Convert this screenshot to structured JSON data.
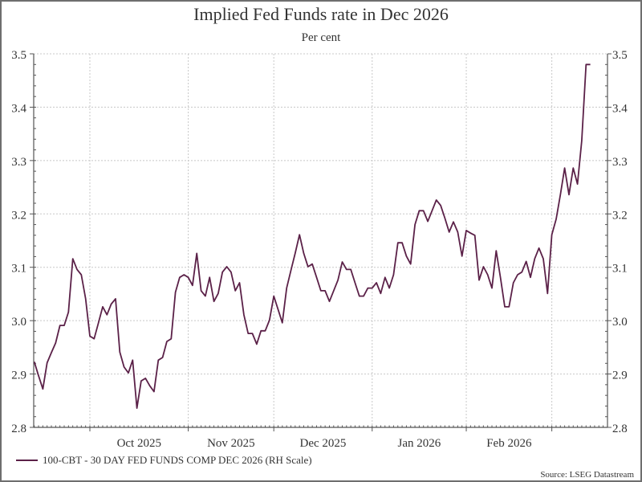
{
  "chart_data": {
    "type": "line",
    "title": "Implied Fed Funds rate in Dec 2026",
    "subtitle": "Per cent",
    "ylim": [
      2.8,
      3.5
    ],
    "yticks": [
      "2.8",
      "2.9",
      "3.0",
      "3.1",
      "3.2",
      "3.3",
      "3.4",
      "3.5"
    ],
    "y_axes": "both",
    "grid": true,
    "xtick_labels": [
      {
        "label": "Oct 2025",
        "start": "2025-10-01",
        "end": "2025-11-03"
      },
      {
        "label": "Nov 2025",
        "start": "2025-11-03",
        "end": "2025-12-01"
      },
      {
        "label": "Dec 2025",
        "start": "2025-12-01",
        "end": "2026-01-01"
      },
      {
        "label": "Jan 2026",
        "start": "2026-01-01",
        "end": "2026-02-02"
      },
      {
        "label": "Feb 2026",
        "start": "2026-02-02",
        "end": "2026-03-02"
      }
    ],
    "legend_position": "bottom-left",
    "series": [
      {
        "name": "100-CBT - 30 DAY FED FUNDS COMP DEC 2026 (RH Scale)",
        "color": "#5b2148",
        "x": [
          "2025-09-12",
          "2025-09-15",
          "2025-09-16",
          "2025-09-17",
          "2025-09-18",
          "2025-09-19",
          "2025-09-22",
          "2025-09-23",
          "2025-09-24",
          "2025-09-25",
          "2025-09-26",
          "2025-09-29",
          "2025-09-30",
          "2025-10-01",
          "2025-10-02",
          "2025-10-03",
          "2025-10-06",
          "2025-10-07",
          "2025-10-08",
          "2025-10-09",
          "2025-10-10",
          "2025-10-13",
          "2025-10-14",
          "2025-10-15",
          "2025-10-16",
          "2025-10-17",
          "2025-10-20",
          "2025-10-21",
          "2025-10-22",
          "2025-10-23",
          "2025-10-24",
          "2025-10-27",
          "2025-10-28",
          "2025-10-29",
          "2025-10-30",
          "2025-10-31",
          "2025-11-03",
          "2025-11-04",
          "2025-11-05",
          "2025-11-06",
          "2025-11-07",
          "2025-11-10",
          "2025-11-11",
          "2025-11-12",
          "2025-11-13",
          "2025-11-14",
          "2025-11-17",
          "2025-11-18",
          "2025-11-19",
          "2025-11-20",
          "2025-11-21",
          "2025-11-24",
          "2025-11-25",
          "2025-11-26",
          "2025-11-27",
          "2025-11-28",
          "2025-12-01",
          "2025-12-02",
          "2025-12-03",
          "2025-12-04",
          "2025-12-05",
          "2025-12-08",
          "2025-12-09",
          "2025-12-10",
          "2025-12-11",
          "2025-12-12",
          "2025-12-15",
          "2025-12-16",
          "2025-12-17",
          "2025-12-18",
          "2025-12-19",
          "2025-12-22",
          "2025-12-23",
          "2025-12-24",
          "2025-12-25",
          "2025-12-26",
          "2025-12-29",
          "2025-12-30",
          "2025-12-31",
          "2026-01-01",
          "2026-01-02",
          "2026-01-05",
          "2026-01-06",
          "2026-01-07",
          "2026-01-08",
          "2026-01-09",
          "2026-01-12",
          "2026-01-13",
          "2026-01-14",
          "2026-01-15",
          "2026-01-16",
          "2026-01-19",
          "2026-01-20",
          "2026-01-21",
          "2026-01-22",
          "2026-01-23",
          "2026-01-26",
          "2026-01-27",
          "2026-01-28",
          "2026-01-29",
          "2026-01-30",
          "2026-02-02",
          "2026-02-03",
          "2026-02-04",
          "2026-02-05",
          "2026-02-06",
          "2026-02-09",
          "2026-02-10",
          "2026-02-11",
          "2026-02-12",
          "2026-02-13",
          "2026-02-16",
          "2026-02-17",
          "2026-02-18",
          "2026-02-19",
          "2026-02-20",
          "2026-02-23",
          "2026-02-24",
          "2026-02-25",
          "2026-02-26",
          "2026-02-27",
          "2026-03-02",
          "2026-03-03",
          "2026-03-04",
          "2026-03-05",
          "2026-03-06",
          "2026-03-09",
          "2026-03-10",
          "2026-03-11",
          "2026-03-12",
          "2026-03-13"
        ],
        "values": [
          2.923,
          2.897,
          2.872,
          2.921,
          2.94,
          2.958,
          2.991,
          2.991,
          3.016,
          3.116,
          3.096,
          3.086,
          3.041,
          2.971,
          2.966,
          2.996,
          3.026,
          3.011,
          3.031,
          3.041,
          2.941,
          2.913,
          2.902,
          2.926,
          2.836,
          2.887,
          2.892,
          2.878,
          2.867,
          2.926,
          2.931,
          2.961,
          2.966,
          3.053,
          3.081,
          3.086,
          3.081,
          3.066,
          3.126,
          3.056,
          3.046,
          3.081,
          3.036,
          3.051,
          3.091,
          3.101,
          3.091,
          3.056,
          3.071,
          3.011,
          2.976,
          2.976,
          2.956,
          2.981,
          2.981,
          3.001,
          3.046,
          3.021,
          2.996,
          3.061,
          3.094,
          3.126,
          3.161,
          3.126,
          3.101,
          3.106,
          3.081,
          3.056,
          3.056,
          3.036,
          3.056,
          3.076,
          3.11,
          3.096,
          3.096,
          3.071,
          3.046,
          3.046,
          3.061,
          3.061,
          3.071,
          3.051,
          3.081,
          3.061,
          3.086,
          3.146,
          3.146,
          3.121,
          3.106,
          3.18,
          3.206,
          3.206,
          3.186,
          3.206,
          3.226,
          3.216,
          3.192,
          3.166,
          3.185,
          3.166,
          3.121,
          3.169,
          3.164,
          3.16,
          3.076,
          3.101,
          3.086,
          3.061,
          3.131,
          3.08,
          3.026,
          3.026,
          3.071,
          3.086,
          3.091,
          3.111,
          3.081,
          3.116,
          3.136,
          3.116,
          3.051,
          3.161,
          3.19,
          3.236,
          3.286,
          3.236,
          3.286,
          3.256,
          3.337,
          3.48,
          3.48
        ]
      }
    ],
    "source": "Source: LSEG Datastream"
  }
}
